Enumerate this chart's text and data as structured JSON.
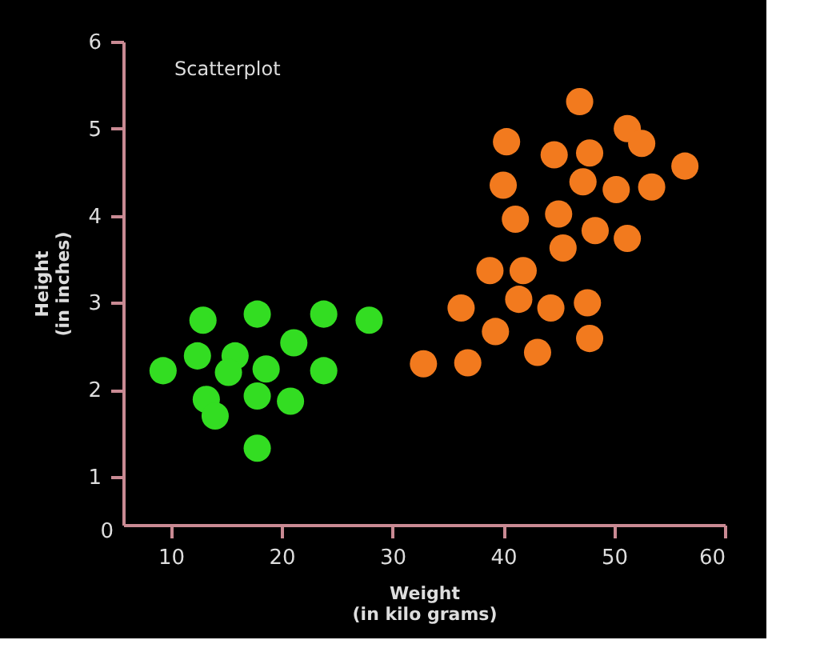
{
  "chart_data": {
    "type": "scatter",
    "title": "Scatterplot",
    "xlabel": "Weight\n(in kilo grams)",
    "ylabel": "Height\n(in inches)",
    "xlim": [
      5.7,
      60
    ],
    "ylim": [
      0.45,
      6
    ],
    "xticks": [
      10,
      20,
      30,
      40,
      50,
      60
    ],
    "yticks": [
      1,
      2,
      3,
      4,
      5,
      6
    ],
    "annotations": [
      "0"
    ],
    "grid": false,
    "legend": false,
    "marker": "circle",
    "series": [
      {
        "color": "#33dd22",
        "x": [
          12.9,
          17.8,
          23.8,
          27.9,
          21.1,
          12.4,
          15.8,
          9.3,
          15.2,
          18.6,
          23.8,
          13.2,
          17.8,
          20.8,
          14.0,
          17.8
        ],
        "values": [
          2.8,
          2.87,
          2.87,
          2.8,
          2.54,
          2.39,
          2.39,
          2.22,
          2.2,
          2.24,
          2.22,
          1.89,
          1.93,
          1.87,
          1.7,
          1.33
        ]
      },
      {
        "color": "#f27a1e",
        "x": [
          46.9,
          40.3,
          51.2,
          52.5,
          44.6,
          47.8,
          56.4,
          40.0,
          47.2,
          50.2,
          53.4,
          41.1,
          45.0,
          48.3,
          51.2,
          45.4,
          38.8,
          41.8,
          41.4,
          36.2,
          44.3,
          47.6,
          39.3,
          47.8,
          43.1,
          32.8,
          36.8
        ],
        "values": [
          5.31,
          4.85,
          5.0,
          4.83,
          4.7,
          4.72,
          4.57,
          4.35,
          4.39,
          4.3,
          4.33,
          3.96,
          4.02,
          3.83,
          3.74,
          3.63,
          3.37,
          3.37,
          3.04,
          2.94,
          2.94,
          3.0,
          2.67,
          2.59,
          2.43,
          2.3,
          2.31
        ]
      }
    ]
  }
}
